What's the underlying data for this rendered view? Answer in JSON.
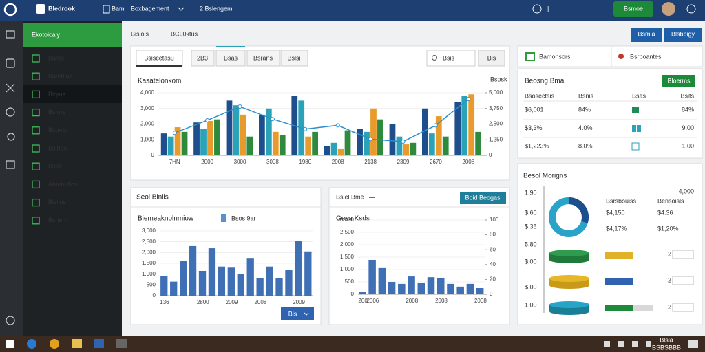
{
  "topbar": {
    "brand": "Bledrook",
    "nav": [
      "Bam",
      "Boxbagement",
      "2 Bslengem"
    ],
    "action": "Bsmoe"
  },
  "sidebar": {
    "title": "Ekotoicaly",
    "items": [
      "Bams",
      "Bamdlas",
      "Biqms",
      "Bsims",
      "Bsoms",
      "Bsiries",
      "Bstia",
      "Antemdios",
      "Bisiins",
      "Bsriem"
    ]
  },
  "header": {
    "title": "Bisiois",
    "subtitle": "BCL0ktus",
    "buttons": [
      "Bsmia",
      "Blsbbigy"
    ]
  },
  "tabs": [
    "Bsiscetasu",
    "2B3",
    "Bsas",
    "Bsrans",
    "Bslsi"
  ],
  "search": "Bsis",
  "search_button": "Bls",
  "panels": {
    "main": {
      "title": "Kasatelonkom",
      "y2label": "Bsosk"
    },
    "sales": {
      "title": "Seol Biniis",
      "chart_title": "Biemeaknolnmiow",
      "legend": "Bsos 9ar",
      "button": "Bls"
    },
    "side": {
      "title": "Bsiel Bme",
      "button": "Boid Beogas",
      "chart_title": "Gesa Ksds"
    },
    "links": [
      "Bamonsors",
      "Bsrpoantes"
    ],
    "table": {
      "title": "Beosng Bma",
      "button": "Bloerms",
      "columns": [
        "Bsosectsis",
        "Bsnis",
        "Bsas",
        "Bsits"
      ],
      "rows": [
        [
          "$6,001",
          "84%",
          "84%"
        ],
        [
          "$3,3%",
          "4.0%",
          "9.00"
        ],
        [
          "$1,223%",
          "8.0%",
          "1.00"
        ]
      ]
    },
    "metrics": {
      "title": "Besol Morigns",
      "axis": [
        "1.90",
        "$.60",
        "$.36",
        "5.80",
        "$.00",
        "$.00",
        "1.00"
      ],
      "top": "4,000",
      "blocks": [
        {
          "label": "Bsrsbouiss",
          "value": "$4,150",
          "change": "$4,17%"
        },
        {
          "label": "Bensoisls",
          "value": "$4.36",
          "change": "$1,20%"
        }
      ],
      "counts": [
        "2",
        "2",
        "2"
      ]
    }
  },
  "taskbar": {
    "time": "Blsla",
    "date": "BSBSBBB"
  },
  "chart_data": [
    {
      "type": "bar",
      "grid": true,
      "categories": [
        "7HN",
        "2000",
        "3000",
        "3008",
        "1980",
        "2008",
        "2138",
        "2309",
        "2670",
        "2008"
      ],
      "ylim": [
        0,
        4000
      ],
      "yticks": [
        0,
        {
          "value": 1000,
          "label": "1,000"
        },
        {
          "value": 2000,
          "label": "2,000"
        },
        {
          "value": 3000,
          "label": "3,000"
        },
        {
          "value": 4000,
          "label": "4,000"
        }
      ],
      "y2lim": [
        0,
        5000
      ],
      "y2ticks": [
        0,
        {
          "value": 1250,
          "label": "1,250"
        },
        {
          "value": 2500,
          "label": "2,500"
        },
        {
          "value": 3750,
          "label": "3,750"
        },
        {
          "value": 5000,
          "label": "5,000"
        }
      ],
      "series": [
        {
          "color": "#1f4e8c",
          "values": [
            1400,
            2100,
            3500,
            2600,
            3800,
            600,
            1700,
            2000,
            3000,
            3400
          ]
        },
        {
          "color": "#2aa3b8",
          "values": [
            1200,
            1700,
            3200,
            3000,
            3500,
            800,
            1500,
            1200,
            1400,
            3800
          ]
        },
        {
          "color": "#e89a2c",
          "values": [
            1800,
            2200,
            2600,
            1500,
            1200,
            400,
            3000,
            700,
            2500,
            3900
          ]
        },
        {
          "color": "#2e8b3e",
          "values": [
            1500,
            2300,
            1200,
            1300,
            1500,
            1600,
            2300,
            800,
            1200,
            1500
          ]
        },
        {
          "type": "line",
          "axis": "y2",
          "color": "#2a8fd0",
          "values": [
            1800,
            2800,
            3900,
            2900,
            2100,
            2400,
            1300,
            1100,
            2400,
            4500
          ]
        }
      ]
    },
    {
      "type": "bar",
      "grid": true,
      "categories": [
        "136",
        null,
        null,
        null,
        "2800",
        null,
        null,
        "2009",
        null,
        null,
        "2008",
        null,
        null,
        null,
        "2009",
        null
      ],
      "ylim": [
        0,
        3000
      ],
      "yticks": [
        0,
        500,
        {
          "value": 1000,
          "label": "1,000"
        },
        {
          "value": 1500,
          "label": "1,500"
        },
        {
          "value": 2000,
          "label": "2,000"
        },
        {
          "value": 2500,
          "label": "2,500"
        },
        {
          "value": 3000,
          "label": "3,000"
        }
      ],
      "series": [
        {
          "color": "#3f6fb5",
          "values": [
            900,
            650,
            1600,
            2300,
            1150,
            2200,
            1350,
            1300,
            1000,
            1750,
            800,
            1350,
            800,
            1200,
            2550,
            2050
          ]
        }
      ]
    },
    {
      "type": "bar",
      "grid": true,
      "categories": [
        "200",
        "2006",
        null,
        null,
        null,
        "2008",
        null,
        null,
        "2008",
        null,
        null,
        null,
        "2008"
      ],
      "ylim": [
        0,
        3000
      ],
      "yticks": [
        0,
        500,
        {
          "value": 1000,
          "label": "1,000"
        },
        {
          "value": 1500,
          "label": "1,500"
        },
        {
          "value": 2000,
          "label": "2,000"
        },
        {
          "value": 2500,
          "label": "2,500"
        },
        {
          "value": 3000,
          "label": "3,000"
        }
      ],
      "y2lim": [
        0,
        100
      ],
      "y2ticks": [
        0,
        20,
        40,
        60,
        80,
        100
      ],
      "series": [
        {
          "color": "#3f6fb5",
          "values": [
            83,
            1390,
            1060,
            500,
            420,
            720,
            470,
            690,
            640,
            420,
            310,
            420,
            250
          ]
        }
      ]
    }
  ]
}
